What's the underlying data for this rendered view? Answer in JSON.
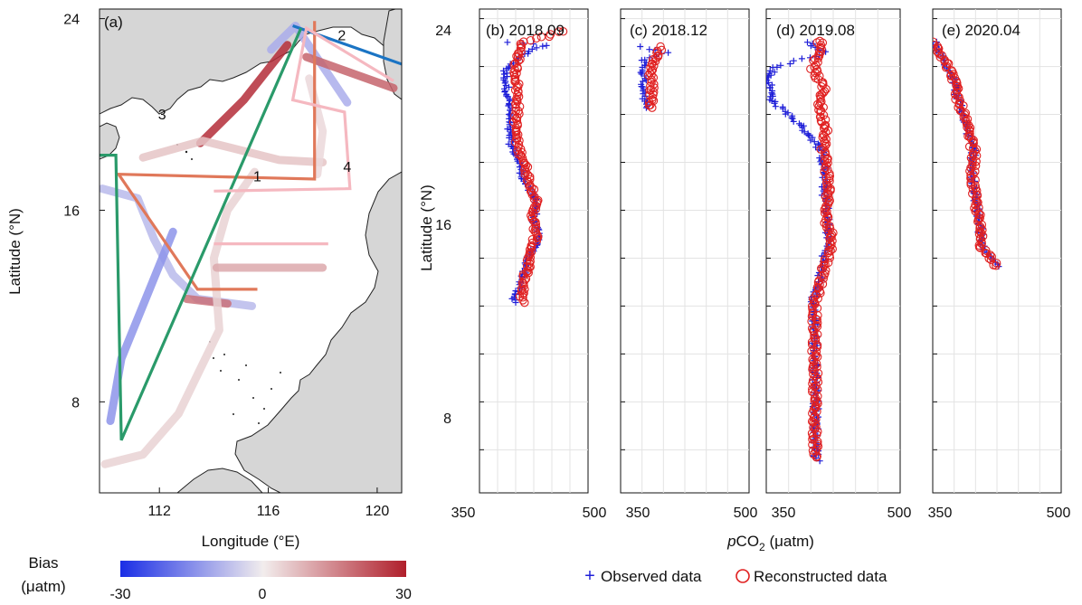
{
  "chart_data": [
    {
      "type": "map",
      "panel_label": "(a)",
      "xlabel": "Longitude (°E)",
      "ylabel": "Latitude (°N)",
      "xlim": [
        109.8,
        120.9
      ],
      "ylim": [
        4.2,
        24.4
      ],
      "xticks": [
        112,
        116,
        120
      ],
      "yticks": [
        8,
        16,
        24
      ],
      "colorbar": {
        "title_line1": "Bias",
        "title_line2": "(μatm)",
        "min": -30,
        "mid": 0,
        "max": 30,
        "tick_labels": [
          "-30",
          "0",
          "30"
        ],
        "colors": [
          "#1a2ee6",
          "#f2eded",
          "#b01f2b"
        ]
      },
      "track_labels": [
        {
          "text": "1",
          "lon": 115.6,
          "lat": 17.2
        },
        {
          "text": "2",
          "lon": 118.7,
          "lat": 23.1
        },
        {
          "text": "3",
          "lon": 112.1,
          "lat": 19.8
        },
        {
          "text": "4",
          "lon": 118.9,
          "lat": 17.6
        }
      ],
      "cruise_tracks": [
        {
          "color": "#e0785a",
          "points": [
            [
              117.7,
              23.9
            ],
            [
              117.7,
              17.3
            ],
            [
              110.5,
              17.5
            ],
            [
              113.4,
              12.7
            ],
            [
              115.6,
              12.7
            ]
          ]
        },
        {
          "color": "#1b74c4",
          "points": [
            [
              116.9,
              23.7
            ],
            [
              120.9,
              22.1
            ]
          ]
        },
        {
          "color": "#2a9a6a",
          "points": [
            [
              109.8,
              18.3
            ],
            [
              110.4,
              18.3
            ],
            [
              110.6,
              6.4
            ],
            [
              117.2,
              23.6
            ]
          ]
        },
        {
          "color": "#f5b8c0",
          "points": [
            [
              114.0,
              16.8
            ],
            [
              119.0,
              16.9
            ],
            [
              118.8,
              20.1
            ],
            [
              116.9,
              20.6
            ],
            [
              117.4,
              23.6
            ],
            [
              120.6,
              21.4
            ]
          ]
        },
        {
          "color": "#f5b8c0",
          "points": [
            [
              114.0,
              14.6
            ],
            [
              118.2,
              14.6
            ]
          ]
        }
      ],
      "bias_segments": [
        {
          "bias": -8,
          "points": [
            [
              109.9,
              16.9
            ],
            [
              111.2,
              16.5
            ],
            [
              111.8,
              14.8
            ],
            [
              112.5,
              13.3
            ],
            [
              113.4,
              12.3
            ],
            [
              115.4,
              12.0
            ]
          ]
        },
        {
          "bias": 18,
          "points": [
            [
              113.0,
              12.3
            ],
            [
              114.5,
              12.1
            ]
          ]
        },
        {
          "bias": -14,
          "points": [
            [
              110.2,
              7.2
            ],
            [
              110.6,
              9.8
            ],
            [
              112.5,
              15.1
            ]
          ]
        },
        {
          "bias": 4,
          "points": [
            [
              110.0,
              5.4
            ],
            [
              111.4,
              5.8
            ],
            [
              112.7,
              7.5
            ],
            [
              113.6,
              9.6
            ],
            [
              114.2,
              11.0
            ],
            [
              114.0,
              14.0
            ],
            [
              114.5,
              16.0
            ],
            [
              115.5,
              17.6
            ]
          ]
        },
        {
          "bias": 28,
          "points": [
            [
              113.5,
              18.8
            ],
            [
              115.1,
              20.6
            ],
            [
              116.7,
              22.9
            ]
          ]
        },
        {
          "bias": 6,
          "points": [
            [
              111.4,
              18.2
            ],
            [
              113.6,
              18.9
            ],
            [
              116.4,
              18.1
            ],
            [
              118.0,
              18.0
            ]
          ]
        },
        {
          "bias": 10,
          "points": [
            [
              114.1,
              13.6
            ],
            [
              118.0,
              13.6
            ]
          ]
        },
        {
          "bias": -10,
          "points": [
            [
              116.1,
              22.7
            ],
            [
              117.0,
              23.7
            ],
            [
              118.9,
              20.5
            ]
          ]
        },
        {
          "bias": 20,
          "points": [
            [
              117.4,
              22.4
            ],
            [
              120.6,
              21.1
            ]
          ]
        },
        {
          "bias": 3,
          "points": [
            [
              117.5,
              21.5
            ],
            [
              118.0,
              19.3
            ],
            [
              117.8,
              17.5
            ]
          ]
        }
      ]
    },
    {
      "type": "scatter",
      "panel_label": "(b) 2018.09",
      "xlabel": "pCO2 (μatm)",
      "ylabel": "Latitude (°N)",
      "xlim": [
        350,
        500
      ],
      "ylim": [
        4.2,
        24.4
      ],
      "xtick_labels": [
        "350",
        "500"
      ],
      "ytick_labels": [
        "8",
        "16",
        "24"
      ],
      "series": [
        {
          "name": "Observed data",
          "marker": "+",
          "color": "#1f1fd8",
          "lat": [
            23.0,
            22.9,
            22.5,
            21.8,
            21.0,
            20.2,
            19.5,
            18.7,
            18.0,
            17.2,
            16.3,
            15.6,
            14.8,
            14.1,
            13.4,
            12.8,
            12.3,
            12.1
          ],
          "pco2": [
            390,
            440,
            410,
            385,
            388,
            392,
            390,
            394,
            405,
            412,
            430,
            425,
            432,
            418,
            412,
            405,
            395,
            405
          ]
        },
        {
          "name": "Reconstructed data",
          "marker": "o",
          "color": "#e02020",
          "lat": [
            23.5,
            23.0,
            22.8,
            22.0,
            21.2,
            20.4,
            19.6,
            18.8,
            18.0,
            17.3,
            16.5,
            15.7,
            14.9,
            14.2,
            13.5,
            12.9,
            12.4,
            12.1
          ],
          "pco2": [
            468,
            410,
            408,
            400,
            402,
            403,
            400,
            402,
            412,
            418,
            428,
            424,
            428,
            420,
            416,
            410,
            408,
            412
          ]
        }
      ]
    },
    {
      "type": "scatter",
      "panel_label": "(c) 2018.12",
      "xlabel": "pCO2 (μatm)",
      "xlim": [
        350,
        500
      ],
      "ylim": [
        4.2,
        24.4
      ],
      "xtick_labels": [
        "500"
      ],
      "series": [
        {
          "name": "Observed data",
          "marker": "+",
          "color": "#1f1fd8",
          "lat": [
            22.8,
            22.6,
            22.3,
            21.8,
            21.2,
            20.6,
            20.2
          ],
          "pco2": [
            370,
            405,
            378,
            376,
            377,
            379,
            378
          ]
        },
        {
          "name": "Reconstructed data",
          "marker": "o",
          "color": "#e02020",
          "lat": [
            22.8,
            22.5,
            22.1,
            21.6,
            21.0,
            20.5,
            20.2
          ],
          "pco2": [
            400,
            392,
            388,
            385,
            387,
            386,
            385
          ]
        }
      ]
    },
    {
      "type": "scatter",
      "panel_label": "(d) 2019.08",
      "xlabel": "pCO2 (μatm)",
      "xlim": [
        350,
        500
      ],
      "ylim": [
        4.2,
        24.4
      ],
      "xtick_labels": [
        "500"
      ],
      "series": [
        {
          "name": "Observed data",
          "marker": "+",
          "color": "#1f1fd8",
          "lat": [
            23.0,
            22.6,
            22.0,
            21.5,
            21.0,
            20.5,
            20.0,
            19.3,
            18.6,
            17.8,
            16.8,
            15.8,
            14.7,
            13.6,
            12.8,
            12.2,
            11.2,
            10.2,
            9.2,
            8.2,
            7.2,
            6.2,
            5.5
          ],
          "pco2": [
            395,
            420,
            360,
            352,
            355,
            358,
            375,
            395,
            410,
            415,
            415,
            418,
            420,
            412,
            408,
            402,
            405,
            404,
            405,
            406,
            405,
            406,
            407
          ]
        },
        {
          "name": "Reconstructed data",
          "marker": "o",
          "color": "#e02020",
          "lat": [
            23.1,
            22.6,
            22.0,
            21.5,
            21.0,
            20.5,
            20.0,
            19.3,
            18.6,
            17.8,
            16.8,
            15.8,
            14.7,
            13.6,
            12.8,
            12.2,
            11.2,
            10.2,
            9.2,
            8.2,
            7.2,
            6.2,
            5.6
          ],
          "pco2": [
            410,
            412,
            402,
            408,
            415,
            410,
            412,
            418,
            414,
            418,
            420,
            416,
            425,
            415,
            410,
            405,
            404,
            404,
            405,
            405,
            404,
            405,
            406
          ]
        }
      ]
    },
    {
      "type": "scatter",
      "panel_label": "(e) 2020.04",
      "xlabel": "pCO2 (μatm)",
      "xlim": [
        350,
        500
      ],
      "ylim": [
        4.2,
        24.4
      ],
      "xtick_labels": [
        "350",
        "500"
      ],
      "series": [
        {
          "name": "Observed data",
          "marker": "+",
          "color": "#1f1fd8",
          "lat": [
            23.0,
            22.3,
            21.5,
            20.8,
            20.0,
            19.2,
            18.4,
            17.6,
            16.8,
            16.0,
            15.2,
            14.4,
            13.6
          ],
          "pco2": [
            352,
            362,
            374,
            378,
            385,
            392,
            398,
            396,
            398,
            402,
            405,
            408,
            432
          ]
        },
        {
          "name": "Reconstructed data",
          "marker": "o",
          "color": "#e02020",
          "lat": [
            23.0,
            22.3,
            21.5,
            20.8,
            20.0,
            19.2,
            18.4,
            17.6,
            16.8,
            16.0,
            15.2,
            14.4,
            13.6
          ],
          "pco2": [
            353,
            363,
            375,
            378,
            386,
            392,
            399,
            396,
            398,
            402,
            405,
            408,
            428
          ]
        }
      ]
    }
  ],
  "legend": {
    "observed": "Observed data",
    "reconstructed": "Reconstructed data"
  },
  "shared_xlabel": {
    "prefix": "p",
    "main": "CO",
    "subscript": "2",
    "suffix": " (μatm)"
  },
  "map_ylabel": "Latitude (°N)",
  "panels_ylabel": "Latitude (°N)"
}
